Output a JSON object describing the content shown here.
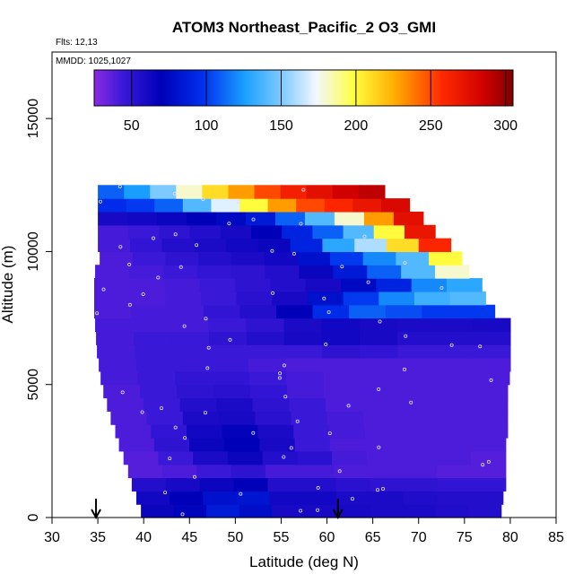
{
  "chart_data": {
    "type": "heatmap",
    "title": "ATOM3 Northeast_Pacific_2 O3_GMI",
    "flights_label": "Flts: 12,13",
    "dates_label": "MMDD: 1025,1027",
    "xlabel": "Latitude (deg N)",
    "ylabel": "Altitude (m)",
    "xlim": [
      30,
      85
    ],
    "ylim": [
      0,
      17500
    ],
    "x_ticks": [
      "30",
      "35",
      "40",
      "45",
      "50",
      "55",
      "60",
      "65",
      "70",
      "75",
      "80",
      "85"
    ],
    "y_ticks": [
      "0",
      "5000",
      "10000",
      "15000"
    ],
    "colorbar": {
      "range": [
        25,
        305
      ],
      "ticks": [
        "50",
        "100",
        "150",
        "200",
        "250",
        "300"
      ]
    },
    "arrows_latitude": [
      34.8,
      61.2
    ],
    "layers": [
      {
        "alt": [
          0,
          500
        ],
        "lat": [
          39.7,
          79.0
        ],
        "values": [
          65,
          72,
          85,
          78,
          60,
          60,
          60,
          58,
          58,
          56,
          55
        ]
      },
      {
        "alt": [
          500,
          1000
        ],
        "lat": [
          39.2,
          79.2
        ],
        "values": [
          62,
          70,
          80,
          82,
          62,
          62,
          58,
          58,
          56,
          55,
          55
        ]
      },
      {
        "alt": [
          1000,
          1500
        ],
        "lat": [
          38.7,
          79.5
        ],
        "values": [
          55,
          60,
          65,
          70,
          55,
          55,
          52,
          50,
          50,
          48,
          48
        ]
      },
      {
        "alt": [
          1500,
          2000
        ],
        "lat": [
          38.3,
          79.5
        ],
        "values": [
          38,
          40,
          45,
          50,
          42,
          42,
          40,
          40,
          40,
          38,
          38
        ]
      },
      {
        "alt": [
          2000,
          2500
        ],
        "lat": [
          37.8,
          79.5
        ],
        "values": [
          38,
          45,
          58,
          65,
          55,
          52,
          42,
          40,
          40,
          40,
          38
        ]
      },
      {
        "alt": [
          2500,
          3000
        ],
        "lat": [
          37.3,
          79.5
        ],
        "values": [
          40,
          50,
          65,
          70,
          60,
          45,
          40,
          40,
          40,
          40,
          40
        ]
      },
      {
        "alt": [
          3000,
          3500
        ],
        "lat": [
          36.9,
          79.7
        ],
        "values": [
          40,
          48,
          62,
          68,
          58,
          45,
          42,
          40,
          40,
          40,
          40
        ]
      },
      {
        "alt": [
          3500,
          4000
        ],
        "lat": [
          36.4,
          79.7
        ],
        "values": [
          40,
          45,
          58,
          60,
          52,
          45,
          42,
          40,
          40,
          40,
          40
        ]
      },
      {
        "alt": [
          4000,
          4500
        ],
        "lat": [
          36.0,
          79.7
        ],
        "values": [
          40,
          45,
          55,
          58,
          50,
          45,
          40,
          40,
          40,
          40,
          40
        ]
      },
      {
        "alt": [
          4500,
          5000
        ],
        "lat": [
          35.6,
          79.7
        ],
        "values": [
          40,
          45,
          50,
          52,
          48,
          42,
          40,
          40,
          40,
          40,
          40
        ]
      },
      {
        "alt": [
          5000,
          5500
        ],
        "lat": [
          35.3,
          79.9
        ],
        "values": [
          42,
          45,
          48,
          48,
          45,
          42,
          40,
          40,
          40,
          40,
          40
        ]
      },
      {
        "alt": [
          5500,
          6000
        ],
        "lat": [
          35.1,
          80.0
        ],
        "values": [
          42,
          45,
          45,
          45,
          42,
          40,
          40,
          40,
          40,
          40,
          40
        ]
      },
      {
        "alt": [
          6000,
          6500
        ],
        "lat": [
          34.9,
          80.0
        ],
        "values": [
          42,
          45,
          45,
          45,
          45,
          45,
          50,
          48,
          45,
          45,
          45
        ]
      },
      {
        "alt": [
          6500,
          7000
        ],
        "lat": [
          34.8,
          80.0
        ],
        "values": [
          42,
          45,
          45,
          50,
          55,
          60,
          62,
          60,
          55,
          55,
          55
        ]
      },
      {
        "alt": [
          7000,
          7500
        ],
        "lat": [
          34.7,
          80.0
        ],
        "values": [
          42,
          42,
          42,
          45,
          50,
          58,
          62,
          60,
          58,
          58,
          60
        ]
      },
      {
        "alt": [
          7500,
          8000
        ],
        "lat": [
          34.6,
          78.3
        ],
        "values": [
          40,
          42,
          42,
          48,
          55,
          70,
          95,
          110,
          105,
          100,
          100
        ]
      },
      {
        "alt": [
          8000,
          8500
        ],
        "lat": [
          34.6,
          77.3
        ],
        "values": [
          40,
          40,
          42,
          45,
          52,
          60,
          80,
          100,
          120,
          135,
          140
        ]
      },
      {
        "alt": [
          8500,
          9000
        ],
        "lat": [
          34.6,
          76.9
        ],
        "values": [
          40,
          40,
          42,
          45,
          50,
          55,
          60,
          75,
          90,
          120,
          130
        ]
      },
      {
        "alt": [
          9000,
          9500
        ],
        "lat": [
          34.7,
          75.5
        ],
        "values": [
          40,
          42,
          45,
          48,
          50,
          55,
          65,
          85,
          110,
          140,
          180
        ]
      },
      {
        "alt": [
          9500,
          10000
        ],
        "lat": [
          35.2,
          74.7
        ],
        "values": [
          40,
          45,
          50,
          55,
          58,
          62,
          80,
          100,
          120,
          140,
          200
        ]
      },
      {
        "alt": [
          10000,
          10500
        ],
        "lat": [
          35.0,
          73.5
        ],
        "values": [
          42,
          48,
          55,
          58,
          62,
          65,
          90,
          130,
          160,
          210,
          260
        ]
      },
      {
        "alt": [
          10500,
          11000
        ],
        "lat": [
          35.0,
          71.8
        ],
        "values": [
          42,
          45,
          50,
          55,
          60,
          70,
          90,
          110,
          140,
          200,
          270
        ]
      },
      {
        "alt": [
          11000,
          11500
        ],
        "lat": [
          35.0,
          70.5
        ],
        "values": [
          60,
          62,
          65,
          70,
          75,
          85,
          110,
          140,
          180,
          230,
          275
        ]
      },
      {
        "alt": [
          11500,
          12000
        ],
        "lat": [
          35.0,
          69.0
        ],
        "values": [
          95,
          100,
          110,
          140,
          170,
          200,
          230,
          250,
          260,
          270,
          280
        ]
      },
      {
        "alt": [
          12000,
          12500
        ],
        "lat": [
          35.0,
          66.3
        ],
        "values": [
          110,
          125,
          150,
          180,
          210,
          230,
          250,
          265,
          275,
          285,
          290
        ]
      }
    ]
  }
}
